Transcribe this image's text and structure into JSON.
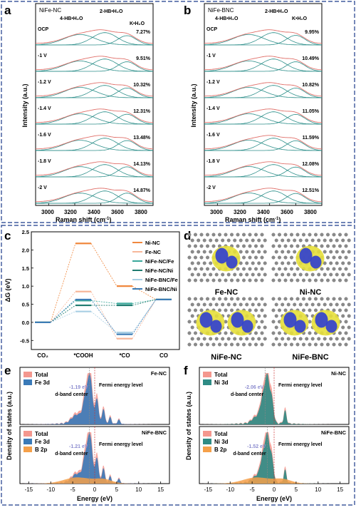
{
  "panels": {
    "a": {
      "letter": "a",
      "sample": "NiFe-NC",
      "ylabel": "Intensity (a.u.)",
      "xlabel": "Raman shift (cm",
      "xlabel_sup": "-1",
      "xlabel_end": ")",
      "xticks": [
        "3000",
        "3200",
        "3400",
        "3600",
        "3800"
      ],
      "peak_labels": [
        "4-HB•H₂O",
        "2-HB•H₂O",
        "K•H₂O"
      ],
      "rows": [
        {
          "potential": "OCP",
          "percent": "7.27%"
        },
        {
          "potential": "-1 V",
          "percent": "9.51%"
        },
        {
          "potential": "-1.2 V",
          "percent": "10.32%"
        },
        {
          "potential": "-1.4 V",
          "percent": "12.31%"
        },
        {
          "potential": "-1.6 V",
          "percent": "13.48%"
        },
        {
          "potential": "-1.8 V",
          "percent": "14.13%"
        },
        {
          "potential": "-2 V",
          "percent": "14.87%"
        }
      ]
    },
    "b": {
      "letter": "b",
      "sample": "NiFe-BNC",
      "ylabel": "Intensity (a.u.)",
      "xlabel": "Raman shift (cm",
      "xlabel_sup": "-1",
      "xlabel_end": ")",
      "xticks": [
        "3000",
        "3200",
        "3400",
        "3600",
        "3800"
      ],
      "peak_labels": [
        "4-HB•H₂O",
        "2-HB•H₂O",
        "K•H₂O"
      ],
      "rows": [
        {
          "potential": "OCP",
          "percent": "9.95%"
        },
        {
          "potential": "-1 V",
          "percent": "10.49%"
        },
        {
          "potential": "-1.2 V",
          "percent": "10.82%"
        },
        {
          "potential": "-1.4 V",
          "percent": "11.05%"
        },
        {
          "potential": "-1.6 V",
          "percent": "11.59%"
        },
        {
          "potential": "-1.8 V",
          "percent": "12.08%"
        },
        {
          "potential": "-2 V",
          "percent": "12.51%"
        }
      ]
    },
    "c": {
      "letter": "c",
      "ylabel": "ΔG (eV)",
      "ylim": [
        -0.75,
        2.5
      ],
      "yticks": [
        "-0.5",
        "0.0",
        "0.5",
        "1.0",
        "1.5",
        "2.0",
        "2.5"
      ],
      "steps": [
        "CO₂",
        "*COOH",
        "*CO",
        "CO"
      ]
    },
    "d": {
      "letter": "d",
      "structures": [
        "Fe-NC",
        "Ni-NC",
        "NiFe-NC",
        "NiFe-BNC"
      ],
      "colors": {
        "carbon": "#8a8a8a",
        "accumulation": "#e6df3a",
        "depletion": "#2f3ed1"
      }
    },
    "e": {
      "letter": "e",
      "top": {
        "sample": "Fe-NC",
        "legend": [
          "Total",
          "Fe 3d"
        ],
        "dband_value": "-1.19 eV",
        "dband_label": "d-band center",
        "fermi_label": "Fermi energy level"
      },
      "bottom": {
        "sample": "NiFe-BNC",
        "legend": [
          "Total",
          "Fe 3d",
          "B 2p"
        ],
        "dband_value": "-1.21 eV",
        "dband_label": "d-band center",
        "fermi_label": "Fermi energy level"
      },
      "xlabel": "Energy (eV)",
      "ylabel": "Density of states (a.u.)",
      "xticks": [
        "-15",
        "-10",
        "-5",
        "0",
        "5",
        "10",
        "15"
      ],
      "colors": {
        "total": "#f4978e",
        "metal": "#3a7ab8",
        "boron": "#f5a04a"
      }
    },
    "f": {
      "letter": "f",
      "top": {
        "sample": "Ni-NC",
        "legend": [
          "Total",
          "Ni 3d"
        ],
        "dband_value": "-2.06 eV",
        "dband_label": "d-band center",
        "fermi_label": "Fermi energy level"
      },
      "bottom": {
        "sample": "NiFe-BNC",
        "legend": [
          "Total",
          "Ni 3d",
          "B 2p"
        ],
        "dband_value": "-1.52 eV",
        "dband_label": "d-band center",
        "fermi_label": "Fermi energy level"
      },
      "xlabel": "Energy (eV)",
      "ylabel": "Density of states (a.u.)",
      "xticks": [
        "-15",
        "-10",
        "-5",
        "0",
        "5",
        "10",
        "15"
      ],
      "colors": {
        "total": "#f4978e",
        "metal": "#2e8b84",
        "boron": "#f5a04a"
      }
    }
  },
  "chart_data": [
    {
      "type": "line",
      "panel": "a",
      "xlim": [
        2900,
        3800
      ],
      "x": [
        3000,
        3200,
        3400,
        3600,
        3800
      ],
      "series": [
        {
          "name": "OCP",
          "values": [
            0.15,
            0.6,
            1.0,
            0.55,
            0.1
          ]
        },
        {
          "name": "-1 V",
          "values": [
            0.12,
            0.55,
            1.0,
            0.6,
            0.12
          ]
        },
        {
          "name": "-1.2 V",
          "values": [
            0.12,
            0.55,
            1.0,
            0.62,
            0.12
          ]
        },
        {
          "name": "-1.4 V",
          "values": [
            0.1,
            0.5,
            1.0,
            0.65,
            0.14
          ]
        },
        {
          "name": "-1.6 V",
          "values": [
            0.1,
            0.5,
            1.0,
            0.66,
            0.14
          ]
        },
        {
          "name": "-1.8 V",
          "values": [
            0.1,
            0.48,
            1.0,
            0.68,
            0.15
          ]
        },
        {
          "name": "-2 V",
          "values": [
            0.1,
            0.45,
            1.0,
            0.7,
            0.16
          ]
        }
      ]
    },
    {
      "type": "line",
      "panel": "b",
      "xlim": [
        2900,
        3800
      ],
      "x": [
        3000,
        3200,
        3400,
        3600,
        3800
      ],
      "series": [
        {
          "name": "OCP",
          "values": [
            0.15,
            0.6,
            1.0,
            0.6,
            0.12
          ]
        },
        {
          "name": "-1 V",
          "values": [
            0.14,
            0.58,
            1.0,
            0.6,
            0.12
          ]
        },
        {
          "name": "-1.2 V",
          "values": [
            0.14,
            0.58,
            1.0,
            0.61,
            0.12
          ]
        },
        {
          "name": "-1.4 V",
          "values": [
            0.13,
            0.56,
            1.0,
            0.62,
            0.13
          ]
        },
        {
          "name": "-1.6 V",
          "values": [
            0.13,
            0.55,
            1.0,
            0.63,
            0.13
          ]
        },
        {
          "name": "-1.8 V",
          "values": [
            0.12,
            0.54,
            1.0,
            0.64,
            0.14
          ]
        },
        {
          "name": "-2 V",
          "values": [
            0.12,
            0.53,
            1.0,
            0.65,
            0.14
          ]
        }
      ]
    },
    {
      "type": "line",
      "panel": "c",
      "categories": [
        "CO₂",
        "*COOH",
        "*CO",
        "CO"
      ],
      "ylim": [
        -0.75,
        2.5
      ],
      "ylabel": "ΔG (eV)",
      "legend_position": "top-right",
      "series": [
        {
          "name": "Ni-NC",
          "color": "#f0883e",
          "values": [
            0,
            2.18,
            1.0,
            0.63
          ]
        },
        {
          "name": "Fe-NC",
          "color": "#f7b79a",
          "values": [
            0,
            0.85,
            -0.45,
            0.63
          ]
        },
        {
          "name": "NiFe-NC/Fe",
          "color": "#3aa89a",
          "values": [
            0,
            0.6,
            0.52,
            0.63
          ]
        },
        {
          "name": "NiFe-NC/Ni",
          "color": "#1f7b6f",
          "values": [
            0,
            0.47,
            0.47,
            0.63
          ]
        },
        {
          "name": "NiFe-BNC/Fe",
          "color": "#a9cfe4",
          "values": [
            0,
            0.3,
            -0.28,
            0.63
          ]
        },
        {
          "name": "NiFe-BNC/Ni",
          "color": "#3c7cb5",
          "values": [
            0,
            0.63,
            -0.33,
            0.63
          ]
        }
      ]
    }
  ]
}
